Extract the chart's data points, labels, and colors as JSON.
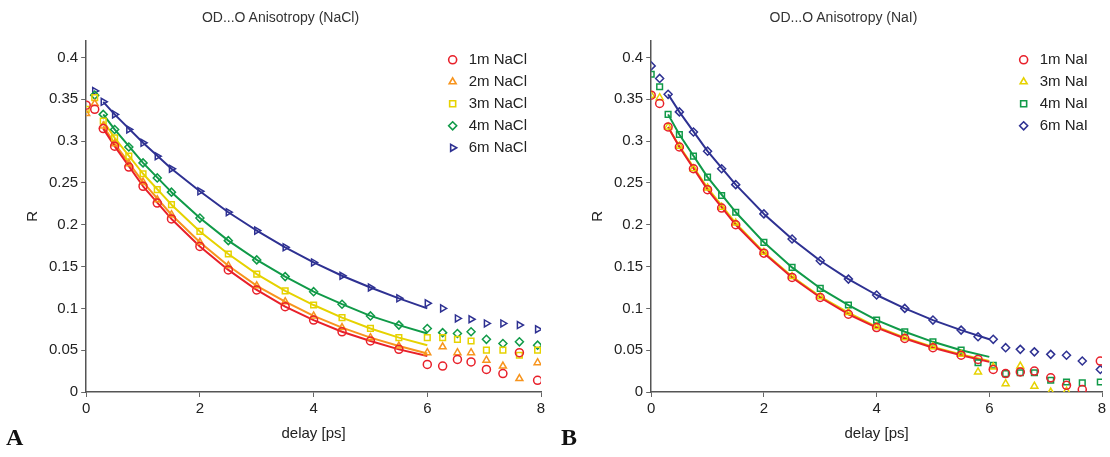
{
  "chart_data": [
    {
      "type": "scatter",
      "title": "OD...O Anisotropy (NaCl)",
      "xlabel": "delay [ps]",
      "ylabel": "R",
      "xlim": [
        0,
        8
      ],
      "xticks": [
        0,
        2,
        4,
        6,
        8
      ],
      "ylim": [
        0,
        0.42
      ],
      "yticks": [
        0,
        0.05,
        0.1,
        0.15,
        0.2,
        0.25,
        0.3,
        0.35,
        0.4
      ],
      "grid": false,
      "legend": "top right",
      "annotations": [
        "A"
      ],
      "x": [
        0,
        0.15,
        0.3,
        0.5,
        0.75,
        1,
        1.25,
        1.5,
        2,
        2.5,
        3,
        3.5,
        4,
        4.5,
        5,
        5.5,
        6.0,
        6.27,
        6.53,
        6.77,
        7.04,
        7.33,
        7.62,
        7.94
      ],
      "series": [
        {
          "name": "1m NaCl",
          "type": "scatter",
          "marker": "circle",
          "color": "#e8202a",
          "values": [
            0.343,
            0.338,
            0.315,
            0.294,
            0.269,
            0.246,
            0.226,
            0.207,
            0.174,
            0.146,
            0.122,
            0.102,
            0.086,
            0.072,
            0.061,
            0.051,
            0.033,
            0.031,
            0.039,
            0.036,
            0.027,
            0.022,
            0.047,
            0.014
          ]
        },
        {
          "name": "2m NaCl",
          "type": "scatter",
          "marker": "triangle",
          "color": "#f7941d",
          "values": [
            0.333,
            0.345,
            0.318,
            0.297,
            0.273,
            0.251,
            0.23,
            0.212,
            0.179,
            0.151,
            0.127,
            0.108,
            0.091,
            0.077,
            0.065,
            0.055,
            0.047,
            0.054,
            0.047,
            0.047,
            0.038,
            0.031,
            0.016,
            0.035
          ]
        },
        {
          "name": "3m NaCl",
          "type": "scatter",
          "marker": "square",
          "color": "#e6d200",
          "values": [
            0.338,
            0.352,
            0.324,
            0.304,
            0.282,
            0.261,
            0.242,
            0.224,
            0.192,
            0.165,
            0.141,
            0.121,
            0.104,
            0.089,
            0.076,
            0.065,
            0.065,
            0.065,
            0.063,
            0.061,
            0.05,
            0.05,
            0.044,
            0.05
          ]
        },
        {
          "name": "4m NaCl",
          "type": "scatter",
          "marker": "diamond",
          "color": "#109a48",
          "values": [
            null,
            0.355,
            0.332,
            0.314,
            0.293,
            0.274,
            0.256,
            0.239,
            0.208,
            0.181,
            0.158,
            0.138,
            0.12,
            0.105,
            0.091,
            0.08,
            0.076,
            0.071,
            0.07,
            0.072,
            0.063,
            0.058,
            0.06,
            0.056
          ]
        },
        {
          "name": "6m NaCl",
          "type": "scatter",
          "marker": "triangle-right",
          "color": "#2e3192",
          "values": [
            null,
            0.36,
            0.347,
            0.332,
            0.314,
            0.298,
            0.282,
            0.267,
            0.24,
            0.215,
            0.193,
            0.173,
            0.155,
            0.139,
            0.125,
            0.112,
            0.106,
            0.1,
            0.088,
            0.087,
            0.082,
            0.082,
            0.08,
            0.075
          ]
        },
        {
          "type": "line",
          "marker": "none",
          "color": "#e8202a",
          "x": [
            0.3,
            0.5,
            1,
            1.5,
            2,
            2.5,
            3,
            3.5,
            4,
            4.5,
            5,
            5.5,
            6
          ],
          "values": [
            0.315,
            0.294,
            0.246,
            0.207,
            0.174,
            0.146,
            0.122,
            0.102,
            0.086,
            0.072,
            0.061,
            0.051,
            0.043
          ]
        },
        {
          "type": "line",
          "marker": "none",
          "color": "#f7941d",
          "x": [
            0.3,
            0.5,
            1,
            1.5,
            2,
            2.5,
            3,
            3.5,
            4,
            4.5,
            5,
            5.5,
            6
          ],
          "values": [
            0.318,
            0.297,
            0.251,
            0.212,
            0.179,
            0.151,
            0.127,
            0.108,
            0.091,
            0.077,
            0.065,
            0.055,
            0.046
          ]
        },
        {
          "type": "line",
          "marker": "none",
          "color": "#e6d200",
          "x": [
            0.3,
            0.5,
            1,
            1.5,
            2,
            2.5,
            3,
            3.5,
            4,
            4.5,
            5,
            5.5,
            6
          ],
          "values": [
            0.324,
            0.304,
            0.261,
            0.224,
            0.192,
            0.165,
            0.141,
            0.121,
            0.104,
            0.089,
            0.076,
            0.065,
            0.056
          ]
        },
        {
          "type": "line",
          "marker": "none",
          "color": "#109a48",
          "x": [
            0.3,
            0.5,
            1,
            1.5,
            2,
            2.5,
            3,
            3.5,
            4,
            4.5,
            5,
            5.5,
            6
          ],
          "values": [
            0.332,
            0.314,
            0.274,
            0.239,
            0.208,
            0.181,
            0.158,
            0.138,
            0.12,
            0.105,
            0.091,
            0.08,
            0.07
          ]
        },
        {
          "type": "line",
          "marker": "none",
          "color": "#2e3192",
          "x": [
            0.3,
            0.5,
            1,
            1.5,
            2,
            2.5,
            3,
            3.5,
            4,
            4.5,
            5,
            5.5,
            6
          ],
          "values": [
            0.347,
            0.332,
            0.298,
            0.267,
            0.24,
            0.215,
            0.193,
            0.173,
            0.155,
            0.139,
            0.125,
            0.112,
            0.1
          ]
        }
      ]
    },
    {
      "type": "scatter",
      "title": "OD...O Anisotropy (NaI)",
      "xlabel": "delay [ps]",
      "ylabel": "R",
      "xlim": [
        0,
        8
      ],
      "xticks": [
        0,
        2,
        4,
        6,
        8
      ],
      "ylim": [
        0,
        0.42
      ],
      "yticks": [
        0,
        0.05,
        0.1,
        0.15,
        0.2,
        0.25,
        0.3,
        0.35,
        0.4
      ],
      "grid": false,
      "legend": "top right",
      "annotations": [
        "B"
      ],
      "x": [
        0,
        0.15,
        0.3,
        0.5,
        0.75,
        1,
        1.25,
        1.5,
        2,
        2.5,
        3,
        3.5,
        4,
        4.5,
        5,
        5.5,
        5.8,
        6.07,
        6.29,
        6.55,
        6.8,
        7.09,
        7.37,
        7.65,
        7.97
      ],
      "series": [
        {
          "name": "1m NaI",
          "type": "scatter",
          "marker": "circle",
          "color": "#e8202a",
          "values": [
            0.355,
            0.345,
            0.317,
            0.293,
            0.267,
            0.242,
            0.22,
            0.2,
            0.166,
            0.137,
            0.113,
            0.093,
            0.077,
            0.064,
            0.053,
            0.044,
            0.039,
            0.027,
            0.022,
            0.024,
            0.025,
            0.017,
            0.008,
            0.003,
            0.037
          ]
        },
        {
          "name": "3m NaI",
          "type": "scatter",
          "marker": "triangle",
          "color": "#e6d200",
          "values": [
            0.355,
            0.352,
            0.317,
            0.294,
            0.267,
            0.244,
            0.221,
            0.202,
            0.167,
            0.138,
            0.114,
            0.095,
            0.078,
            0.065,
            0.054,
            0.045,
            0.024,
            0.03,
            0.01,
            0.031,
            0.007,
            0.0,
            0.001,
            null,
            null
          ]
        },
        {
          "name": "4m NaI",
          "type": "scatter",
          "marker": "square",
          "color": "#109a48",
          "values": [
            0.38,
            0.365,
            0.332,
            0.308,
            0.282,
            0.257,
            0.235,
            0.215,
            0.179,
            0.149,
            0.124,
            0.104,
            0.086,
            0.072,
            0.06,
            0.05,
            0.035,
            0.032,
            0.022,
            0.023,
            0.023,
            0.014,
            0.012,
            0.011,
            0.012
          ]
        },
        {
          "name": "6m NaI",
          "type": "scatter",
          "marker": "diamond",
          "color": "#2e3192",
          "values": [
            0.39,
            0.375,
            0.356,
            0.335,
            0.311,
            0.288,
            0.267,
            0.248,
            0.213,
            0.183,
            0.157,
            0.135,
            0.116,
            0.1,
            0.086,
            0.074,
            0.066,
            0.063,
            0.053,
            0.051,
            0.048,
            0.045,
            0.044,
            0.037,
            0.027
          ]
        },
        {
          "type": "line",
          "marker": "none",
          "color": "#e8202a",
          "x": [
            0.3,
            0.5,
            1,
            1.5,
            2,
            2.5,
            3,
            3.5,
            4,
            4.5,
            5,
            5.5,
            6
          ],
          "values": [
            0.317,
            0.293,
            0.242,
            0.2,
            0.166,
            0.137,
            0.113,
            0.093,
            0.077,
            0.064,
            0.053,
            0.044,
            0.036
          ]
        },
        {
          "type": "line",
          "marker": "none",
          "color": "#e6d200",
          "x": [
            0.3,
            0.5,
            1,
            1.5,
            2,
            2.5,
            3,
            3.5,
            4,
            4.5,
            5,
            5.5,
            6
          ],
          "values": [
            0.317,
            0.294,
            0.244,
            0.202,
            0.167,
            0.138,
            0.114,
            0.095,
            0.078,
            0.065,
            0.054,
            0.045,
            0.037
          ]
        },
        {
          "type": "line",
          "marker": "none",
          "color": "#109a48",
          "x": [
            0.3,
            0.5,
            1,
            1.5,
            2,
            2.5,
            3,
            3.5,
            4,
            4.5,
            5,
            5.5,
            6
          ],
          "values": [
            0.332,
            0.308,
            0.257,
            0.215,
            0.179,
            0.149,
            0.124,
            0.104,
            0.086,
            0.072,
            0.06,
            0.05,
            0.042
          ]
        },
        {
          "type": "line",
          "marker": "none",
          "color": "#2e3192",
          "x": [
            0.3,
            0.5,
            1,
            1.5,
            2,
            2.5,
            3,
            3.5,
            4,
            4.5,
            5,
            5.5,
            6
          ],
          "values": [
            0.356,
            0.335,
            0.288,
            0.248,
            0.213,
            0.183,
            0.157,
            0.135,
            0.116,
            0.1,
            0.086,
            0.074,
            0.063
          ]
        }
      ]
    }
  ]
}
